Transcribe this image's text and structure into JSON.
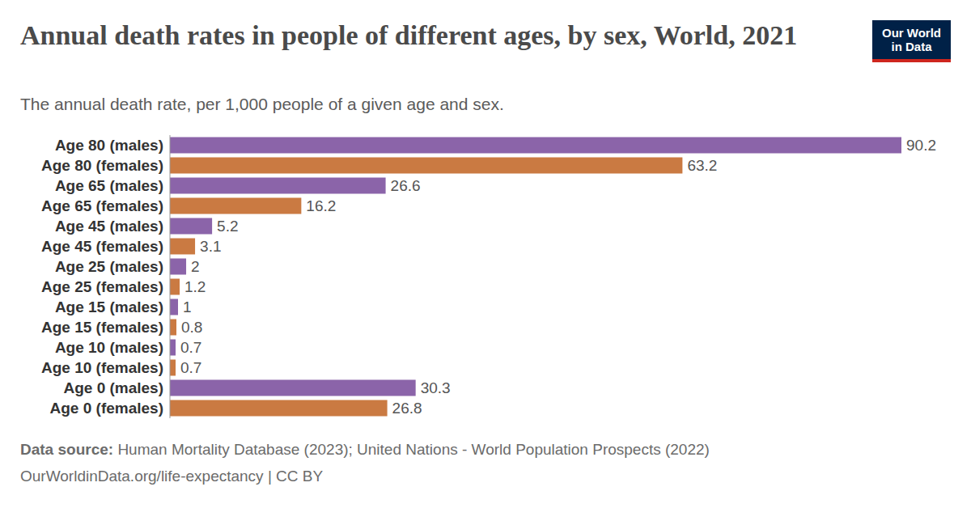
{
  "chart_data": {
    "type": "bar",
    "orientation": "horizontal",
    "title": "Annual death rates in people of different ages, by sex, World, 2021",
    "subtitle": "The annual death rate, per 1,000 people of a given age and sex.",
    "categories": [
      "Age 80 (males)",
      "Age 80 (females)",
      "Age 65 (males)",
      "Age 65 (females)",
      "Age 45 (males)",
      "Age 45 (females)",
      "Age 25 (males)",
      "Age 25 (females)",
      "Age 15 (males)",
      "Age 15 (females)",
      "Age 10 (males)",
      "Age 10 (females)",
      "Age 0 (males)",
      "Age 0 (females)"
    ],
    "values": [
      90.2,
      63.2,
      26.6,
      16.2,
      5.2,
      3.1,
      2,
      1.2,
      1,
      0.8,
      0.7,
      0.7,
      30.3,
      26.8
    ],
    "colors": [
      "#8b64a9",
      "#ca7a42",
      "#8b64a9",
      "#ca7a42",
      "#8b64a9",
      "#ca7a42",
      "#8b64a9",
      "#ca7a42",
      "#8b64a9",
      "#ca7a42",
      "#8b64a9",
      "#ca7a42",
      "#8b64a9",
      "#ca7a42"
    ],
    "xlim": [
      0,
      90.2
    ],
    "data_labels": true,
    "tick_labels": "y",
    "grid": false
  },
  "source_label": "Data source:",
  "source": "Human Mortality Database (2023); United Nations - World Population Prospects (2022)",
  "footer": "OurWorldinData.org/life-expectancy | CC BY",
  "logo": [
    "Our World",
    "in Data"
  ]
}
